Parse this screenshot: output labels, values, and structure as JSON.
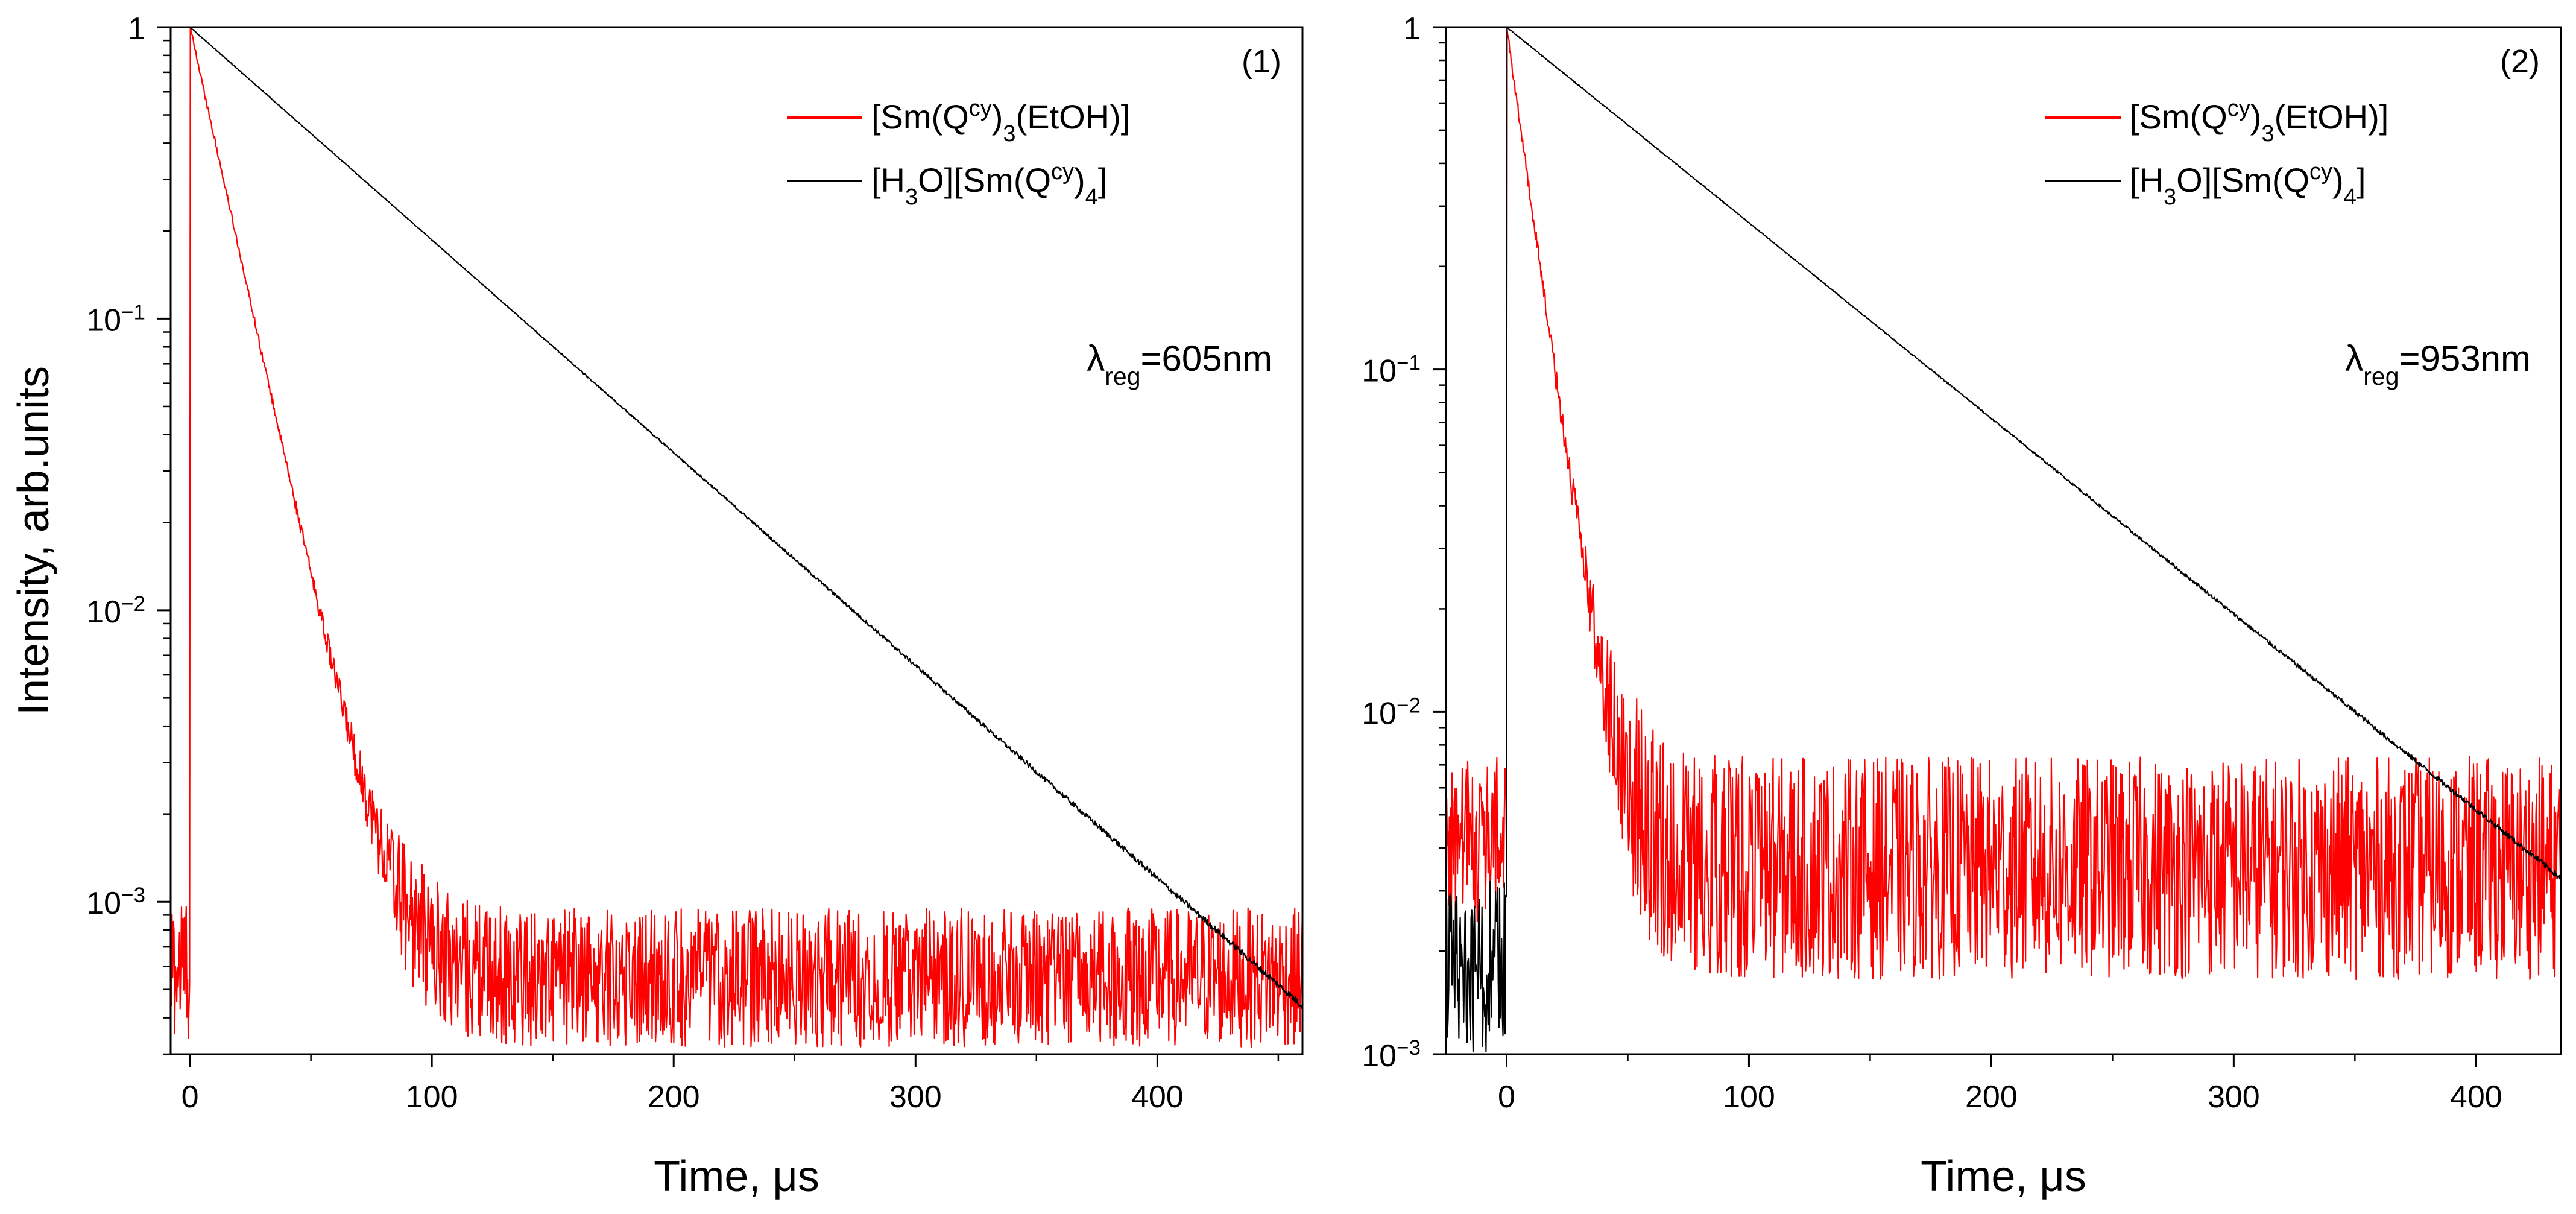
{
  "chart_data": [
    {
      "type": "line",
      "panel_label": "(1)",
      "xlabel": "Time, μs",
      "ylabel": "Intensity, arb.units",
      "yscale": "log",
      "xlim": [
        -8,
        460
      ],
      "ylim": [
        0.0003,
        1
      ],
      "x_ticks": [
        0,
        100,
        200,
        300,
        400
      ],
      "x_tick_labels": [
        "0",
        "100",
        "200",
        "300",
        "400"
      ],
      "y_ticks": [
        1,
        0.1,
        0.01,
        0.001
      ],
      "y_tick_labels": [
        {
          "base": "1",
          "exp": ""
        },
        {
          "base": "10",
          "exp": "−1"
        },
        {
          "base": "10",
          "exp": "−2"
        },
        {
          "base": "10",
          "exp": "−3"
        }
      ],
      "annotation": {
        "symbol": "λ",
        "sub": "reg",
        "value": "=605nm"
      },
      "legend_position": "top-right",
      "series": [
        {
          "name": "[Sm(Qcy)3(EtOH)]",
          "label_parts": [
            [
              "",
              "[Sm(Q"
            ],
            [
              "sup",
              "cy"
            ],
            [
              "",
              ")"
            ],
            [
              "sub",
              "3"
            ],
            [
              "",
              "(EtOH)]"
            ]
          ],
          "color": "#ff0000",
          "pre_level": 0.0006,
          "tau": 11.5,
          "floor": 0.00055,
          "noise": 0.55,
          "x_end": 460
        },
        {
          "name": "[H3O][Sm(Qcy)4]",
          "label_parts": [
            [
              "",
              "[H"
            ],
            [
              "sub",
              "3"
            ],
            [
              "",
              "O][Sm(Q"
            ],
            [
              "sup",
              "cy"
            ],
            [
              "",
              ")"
            ],
            [
              "sub",
              "4"
            ],
            [
              "",
              "]"
            ]
          ],
          "color": "#000000",
          "pre_level": null,
          "tau": 59.5,
          "floor": 0,
          "noise": 0.14,
          "x_end": 460
        }
      ]
    },
    {
      "type": "line",
      "panel_label": "(2)",
      "xlabel": "Time, μs",
      "ylabel": "",
      "yscale": "log",
      "xlim": [
        -25,
        435
      ],
      "ylim": [
        0.001,
        1
      ],
      "x_ticks": [
        0,
        100,
        200,
        300,
        400
      ],
      "x_tick_labels": [
        "0",
        "100",
        "200",
        "300",
        "400"
      ],
      "y_ticks": [
        1,
        0.1,
        0.01,
        0.001
      ],
      "y_tick_labels": [
        {
          "base": "1",
          "exp": ""
        },
        {
          "base": "10",
          "exp": "−1"
        },
        {
          "base": "10",
          "exp": "−2"
        },
        {
          "base": "10",
          "exp": "−3"
        }
      ],
      "annotation": {
        "symbol": "λ",
        "sub": "reg",
        "value": "=953nm"
      },
      "legend_position": "top-right",
      "series": [
        {
          "name": "[Sm(Qcy)3(EtOH)]",
          "label_parts": [
            [
              "",
              "[Sm(Q"
            ],
            [
              "sup",
              "cy"
            ],
            [
              "",
              ")"
            ],
            [
              "sub",
              "3"
            ],
            [
              "",
              "(EtOH)]"
            ]
          ],
          "color": "#ff0000",
          "pre_level": 0.0042,
          "tau": 8.5,
          "floor": 0.0035,
          "noise": 0.75,
          "x_end": 435
        },
        {
          "name": "[H3O][Sm(Qcy)4]",
          "label_parts": [
            [
              "",
              "[H"
            ],
            [
              "sub",
              "3"
            ],
            [
              "",
              "O][Sm(Q"
            ],
            [
              "sup",
              "cy"
            ],
            [
              "",
              ")"
            ],
            [
              "sub",
              "4"
            ],
            [
              "",
              "]"
            ]
          ],
          "color": "#000000",
          "pre_level": 0.0018,
          "tau": 76,
          "floor": 0,
          "noise": 0.16,
          "x_end": 435
        }
      ]
    }
  ]
}
